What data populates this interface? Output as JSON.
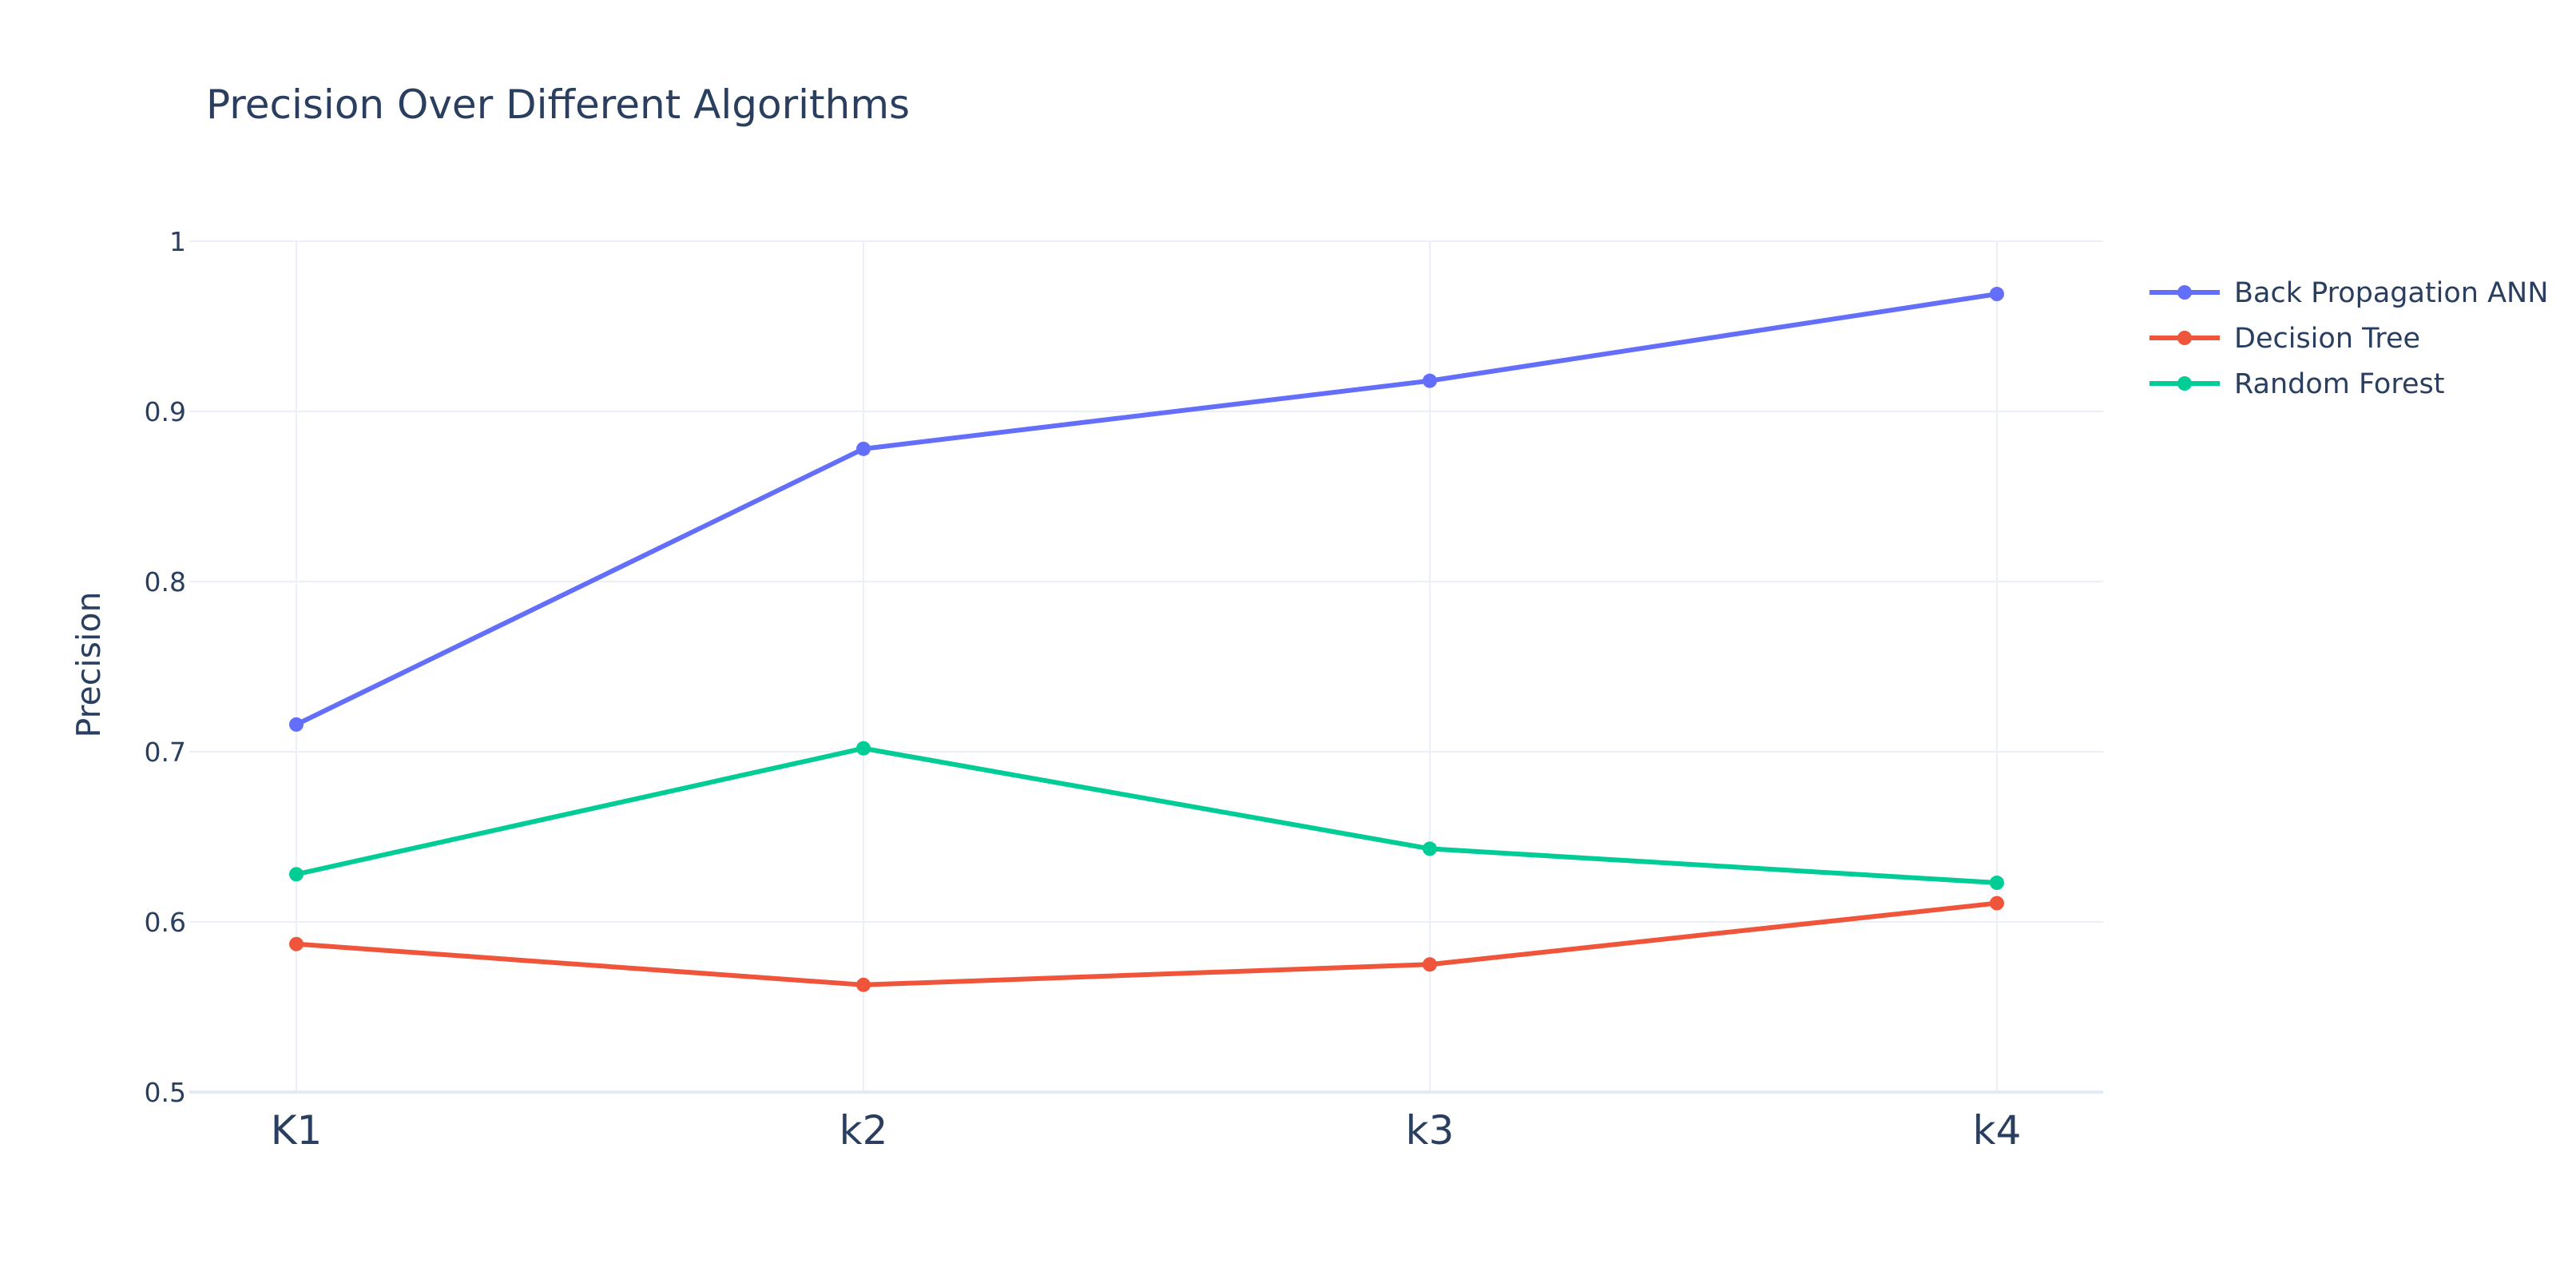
{
  "chart_data": {
    "type": "line",
    "title": "Precision Over Different Algorithms",
    "xlabel": "",
    "ylabel": "Precision",
    "categories": [
      "K1",
      "k2",
      "k3",
      "k4"
    ],
    "ylim": [
      0.5,
      1
    ],
    "yticks": [
      "0.5",
      "0.6",
      "0.7",
      "0.8",
      "0.9",
      "1"
    ],
    "grid": true,
    "legend_position": "top-right",
    "series": [
      {
        "name": "Back Propagation ANN",
        "color": "#636efa",
        "values": [
          0.716,
          0.878,
          0.918,
          0.969
        ]
      },
      {
        "name": "Decision Tree",
        "color": "#ef553b",
        "values": [
          0.587,
          0.563,
          0.575,
          0.611
        ]
      },
      {
        "name": "Random Forest",
        "color": "#00cc96",
        "values": [
          0.628,
          0.702,
          0.643,
          0.623
        ]
      }
    ],
    "style": {
      "text_color": "#2a3f5f",
      "grid_color": "#ebf0f8",
      "background": "#ffffff"
    }
  }
}
